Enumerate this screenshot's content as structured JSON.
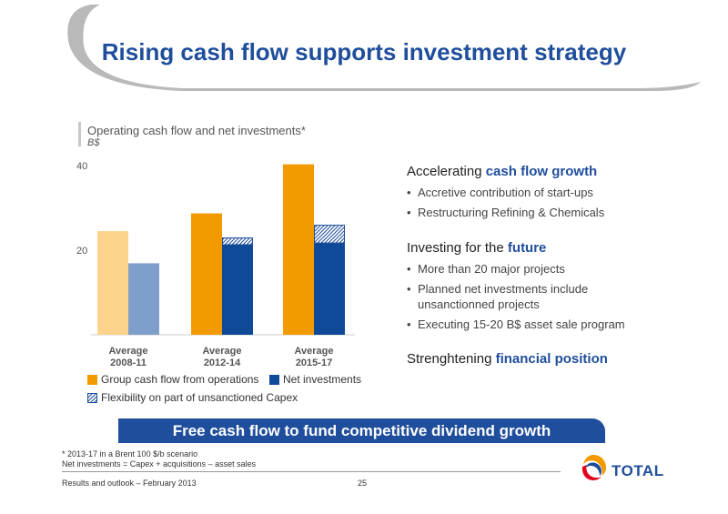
{
  "title": "Rising cash flow supports investment strategy",
  "chart_data": {
    "type": "bar",
    "title": "Operating cash flow and net investments*",
    "unit": "B$",
    "categories": [
      "Average\n2008-11",
      "Average\n2012-14",
      "Average\n2015-17"
    ],
    "category_lines": [
      [
        "Average",
        "2008-11"
      ],
      [
        "Average",
        "2012-14"
      ],
      [
        "Average",
        "2015-17"
      ]
    ],
    "series": [
      {
        "name": "Group cash flow from operations",
        "values": [
          24.5,
          28.7,
          40.3
        ]
      },
      {
        "name": "Net investments",
        "values": [
          16.9,
          21.3,
          21.7
        ]
      },
      {
        "name": "Flexibility on part of unsanctioned Capex",
        "values": [
          0,
          1.6,
          4.2
        ],
        "stacked_on": "Net investments"
      }
    ],
    "y_ticks": [
      "20",
      "40"
    ],
    "ylim": [
      0,
      40
    ]
  },
  "colors": {
    "cash_flow_past": "#fbd38c",
    "cash_flow": "#f39a00",
    "investments_past": "#7f9fcb",
    "investments": "#0f4a99",
    "flexibility_hatch": "#1f4e9c",
    "accent": "#1f4e9c"
  },
  "bullets": {
    "groups": [
      {
        "heading_plain": "Accelerating ",
        "heading_bold": "cash flow growth",
        "items": [
          "Accretive contribution of start-ups",
          "Restructuring Refining & Chemicals"
        ]
      },
      {
        "heading_plain": "Investing for the ",
        "heading_bold": "future",
        "items": [
          "More than 20 major projects",
          "Planned net investments include unsanctionned projects",
          "Executing 15-20 B$ asset sale program"
        ]
      },
      {
        "heading_plain": "Strenghtening ",
        "heading_bold": "financial position",
        "items": []
      }
    ]
  },
  "banner": "Free cash flow to fund competitive dividend growth",
  "footnotes": [
    "* 2013-17 in a Brent 100 $/b scenario",
    "Net investments = Capex + acquisitions – asset sales"
  ],
  "footer": {
    "left": "Results and outlook – February 2013",
    "page": "25"
  },
  "logo": {
    "text": "TOTAL",
    "icon": "total-logo-icon"
  }
}
